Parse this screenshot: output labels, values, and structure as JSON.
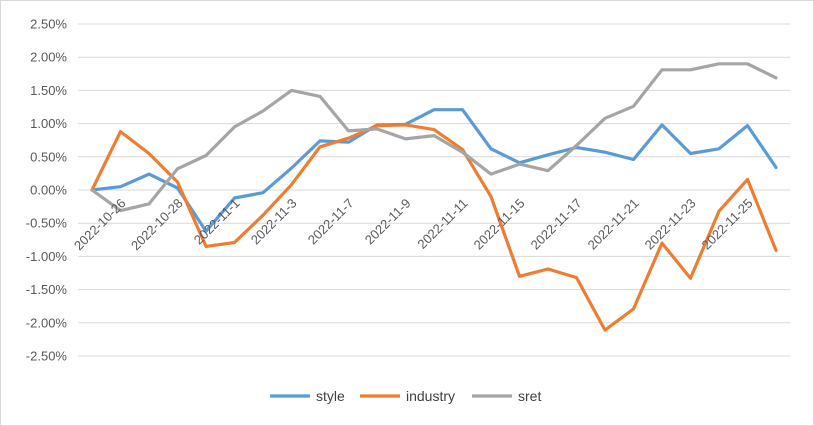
{
  "chart_data": {
    "type": "line",
    "title": "",
    "xlabel": "",
    "ylabel": "",
    "ylim": [
      -0.025,
      0.025
    ],
    "y_ticks": [
      "2.50%",
      "2.00%",
      "1.50%",
      "1.00%",
      "0.50%",
      "0.00%",
      "-0.50%",
      "-1.00%",
      "-1.50%",
      "-2.00%",
      "-2.50%"
    ],
    "y_tick_values": [
      0.025,
      0.02,
      0.015,
      0.01,
      0.005,
      0,
      -0.005,
      -0.01,
      -0.015,
      -0.02,
      -0.025
    ],
    "x_tick_labels": [
      "2022-10-26",
      "2022-10-28",
      "2022-11-1",
      "2022-11-3",
      "2022-11-7",
      "2022-11-9",
      "2022-11-11",
      "2022-11-15",
      "2022-11-17",
      "2022-11-21",
      "2022-11-23",
      "2022-11-25"
    ],
    "x_tick_label_index": [
      1,
      3,
      5,
      7,
      9,
      11,
      13,
      15,
      17,
      19,
      21,
      23
    ],
    "x_count": 25,
    "grid": "horizontal",
    "legend": "bottom",
    "series": [
      {
        "name": "style",
        "color": "#5B9BD5",
        "values": [
          0.0,
          0.0005,
          0.0024,
          0.0003,
          -0.0062,
          -0.0012,
          -0.0004,
          0.0033,
          0.0074,
          0.0072,
          0.0098,
          0.0099,
          0.0121,
          0.0121,
          0.0062,
          0.0041,
          0.0053,
          0.0064,
          0.0057,
          0.0046,
          0.0098,
          0.0055,
          0.0062,
          0.0097,
          0.0034
        ]
      },
      {
        "name": "industry",
        "color": "#ED7D31",
        "values": [
          0.0,
          0.0088,
          0.0055,
          0.0012,
          -0.0085,
          -0.0079,
          -0.0038,
          0.0008,
          0.0065,
          0.0078,
          0.0097,
          0.0098,
          0.0091,
          0.0061,
          -0.001,
          -0.013,
          -0.0119,
          -0.0132,
          -0.0211,
          -0.0179,
          -0.008,
          -0.0133,
          -0.0032,
          0.0016,
          -0.0091
        ]
      },
      {
        "name": "sret",
        "color": "#A5A5A5",
        "values": [
          0.0,
          -0.0031,
          -0.0021,
          0.0032,
          0.0052,
          0.0095,
          0.0119,
          0.015,
          0.0141,
          0.0089,
          0.0092,
          0.0077,
          0.0082,
          0.0057,
          0.0024,
          0.0039,
          0.0029,
          0.0067,
          0.0108,
          0.0126,
          0.0181,
          0.0181,
          0.019,
          0.019,
          0.0169
        ]
      }
    ]
  }
}
